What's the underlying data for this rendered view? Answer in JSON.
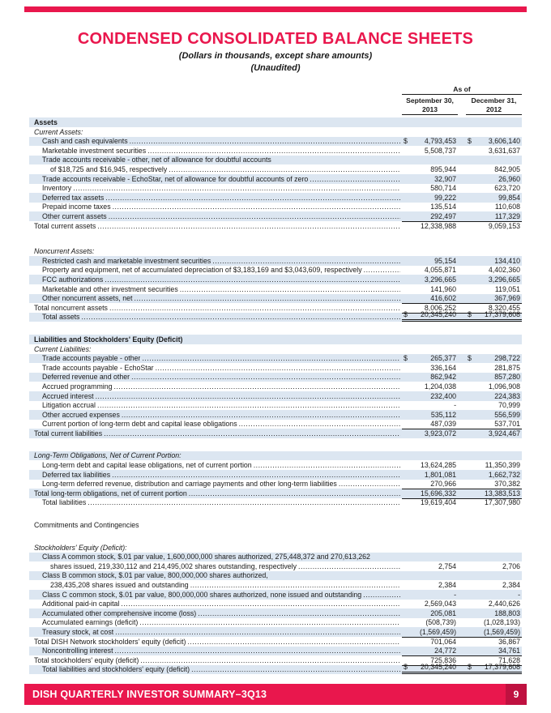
{
  "colors": {
    "accent_red": "#e9174d",
    "page_box_red": "#bf1140",
    "stripe_blue": "#dce6f1",
    "text": "#1a1a1a"
  },
  "title": "CONDENSED CONSOLIDATED BALANCE SHEETS",
  "subtitle_line1": "(Dollars in thousands, except share amounts)",
  "subtitle_line2": "(Unaudited)",
  "table": {
    "as_of_label": "As of",
    "columns": [
      {
        "line1": "September 30,",
        "line2": "2013"
      },
      {
        "line1": "December 31,",
        "line2": "2012"
      }
    ],
    "rows": [
      {
        "t": "Assets",
        "s": "section",
        "stripe": true
      },
      {
        "t": "Current Assets:",
        "s": "sub"
      },
      {
        "t": "Cash and cash equivalents",
        "ind": 1,
        "dots": true,
        "d1": "$",
        "v1": "4,793,453",
        "d2": "$",
        "v2": "3,606,140",
        "stripe": true
      },
      {
        "t": "Marketable investment securities",
        "ind": 1,
        "dots": true,
        "v1": "5,508,737",
        "v2": "3,631,637"
      },
      {
        "t": "Trade accounts receivable - other, net of allowance for doubtful accounts",
        "ind": 1,
        "stripe": true
      },
      {
        "t": "of $18,725 and $16,945, respectively",
        "ind": 2,
        "dots": true,
        "v1": "895,944",
        "v2": "842,905"
      },
      {
        "t": "Trade accounts receivable - EchoStar, net of allowance for doubtful accounts of zero",
        "ind": 1,
        "dots": true,
        "v1": "32,907",
        "v2": "26,960",
        "stripe": true
      },
      {
        "t": "Inventory",
        "ind": 1,
        "dots": true,
        "v1": "580,714",
        "v2": "623,720"
      },
      {
        "t": "Deferred tax assets",
        "ind": 1,
        "dots": true,
        "v1": "99,222",
        "v2": "99,854",
        "stripe": true
      },
      {
        "t": "Prepaid income taxes",
        "ind": 1,
        "dots": true,
        "v1": "135,514",
        "v2": "110,608"
      },
      {
        "t": "Other current assets",
        "ind": 1,
        "dots": true,
        "v1": "292,497",
        "v2": "117,329",
        "stripe": true
      },
      {
        "t": "Total current assets",
        "dots": true,
        "v1": "12,338,988",
        "v2": "9,059,153",
        "bt": true
      },
      {
        "type": "spacer",
        "h": 20
      },
      {
        "t": "Noncurrent Assets:",
        "s": "sub"
      },
      {
        "t": "Restricted cash and marketable investment securities",
        "ind": 1,
        "dots": true,
        "v1": "95,154",
        "v2": "134,410",
        "stripe": true
      },
      {
        "t": "Property and equipment, net of accumulated depreciation of $3,183,169 and $3,043,609, respectively",
        "ind": 1,
        "dots": true,
        "v1": "4,055,871",
        "v2": "4,402,360"
      },
      {
        "t": "FCC authorizations",
        "ind": 1,
        "dots": true,
        "v1": "3,296,665",
        "v2": "3,296,665",
        "stripe": true
      },
      {
        "t": "Marketable and other investment securities",
        "ind": 1,
        "dots": true,
        "v1": "141,960",
        "v2": "119,051"
      },
      {
        "t": "Other noncurrent assets, net",
        "ind": 1,
        "dots": true,
        "v1": "416,602",
        "v2": "367,969",
        "stripe": true
      },
      {
        "t": "Total noncurrent assets",
        "dots": true,
        "v1": "8,006,252",
        "v2": "8,320,455",
        "bt": true
      },
      {
        "t": "Total assets",
        "ind": 1,
        "dots": true,
        "d1": "$",
        "v1": "20,345,240",
        "d2": "$",
        "v2": "17,379,608",
        "stripe": true,
        "bt": true,
        "dbl": true
      },
      {
        "type": "spacer",
        "h": 16
      },
      {
        "t": "Liabilities and Stockholders' Equity (Deficit)",
        "s": "section",
        "stripe": true
      },
      {
        "t": "Current Liabilities:",
        "s": "sub"
      },
      {
        "t": "Trade accounts payable - other",
        "ind": 1,
        "dots": true,
        "d1": "$",
        "v1": "265,377",
        "d2": "$",
        "v2": "298,722",
        "stripe": true
      },
      {
        "t": "Trade accounts payable - EchoStar",
        "ind": 1,
        "dots": true,
        "v1": "336,164",
        "v2": "281,875"
      },
      {
        "t": "Deferred revenue and other",
        "ind": 1,
        "dots": true,
        "v1": "862,942",
        "v2": "857,280",
        "stripe": true
      },
      {
        "t": "Accrued programming",
        "ind": 1,
        "dots": true,
        "v1": "1,204,038",
        "v2": "1,096,908"
      },
      {
        "t": "Accrued interest",
        "ind": 1,
        "dots": true,
        "v1": "232,400",
        "v2": "224,383",
        "stripe": true
      },
      {
        "t": "Litigation accrual",
        "ind": 1,
        "dots": true,
        "v1": "-",
        "v2": "70,999"
      },
      {
        "t": "Other accrued expenses",
        "ind": 1,
        "dots": true,
        "v1": "535,112",
        "v2": "556,599",
        "stripe": true
      },
      {
        "t": "Current portion of long-term debt and capital lease obligations",
        "ind": 1,
        "dots": true,
        "v1": "487,039",
        "v2": "537,701"
      },
      {
        "t": "Total current liabilities",
        "dots": true,
        "v1": "3,923,072",
        "v2": "3,924,467",
        "stripe": true,
        "bt": true
      },
      {
        "type": "spacer",
        "h": 16
      },
      {
        "t": "Long-Term Obligations, Net of Current Portion:",
        "s": "sub",
        "stripe": true
      },
      {
        "t": "Long-term debt and capital lease obligations, net of current portion",
        "ind": 1,
        "dots": true,
        "v1": "13,624,285",
        "v2": "11,350,399"
      },
      {
        "t": "Deferred tax liabilities",
        "ind": 1,
        "dots": true,
        "v1": "1,801,081",
        "v2": "1,662,732",
        "stripe": true
      },
      {
        "t": "Long-term deferred revenue, distribution and carriage payments and other long-term liabilities",
        "ind": 1,
        "dots": true,
        "v1": "270,966",
        "v2": "370,382"
      },
      {
        "t": "Total long-term obligations, net of current portion",
        "dots": true,
        "v1": "15,696,332",
        "v2": "13,383,513",
        "stripe": true,
        "bt": true
      },
      {
        "t": "Total liabilities",
        "ind": 1,
        "dots": true,
        "v1": "19,619,404",
        "v2": "17,307,980",
        "bt": true
      },
      {
        "type": "spacer",
        "h": 16
      },
      {
        "t": "Commitments and Contingencies",
        "s": "plain"
      },
      {
        "type": "spacer",
        "h": 16
      },
      {
        "t": "Stockholders' Equity (Deficit):",
        "s": "sub"
      },
      {
        "t": "Class A common stock, $.01 par value, 1,600,000,000 shares authorized, 275,448,372 and 270,613,262",
        "ind": 1,
        "stripe": true
      },
      {
        "t": "shares issued, 219,330,112 and 214,495,002 shares outstanding, respectively",
        "ind": 2,
        "dots": true,
        "v1": "2,754",
        "v2": "2,706"
      },
      {
        "t": "Class B common stock, $.01 par value, 800,000,000 shares authorized,",
        "ind": 1,
        "stripe": true
      },
      {
        "t": "238,435,208 shares issued and outstanding",
        "ind": 2,
        "dots": true,
        "v1": "2,384",
        "v2": "2,384"
      },
      {
        "t": "Class C common stock, $.01 par value, 800,000,000 shares authorized, none issued and outstanding",
        "ind": 1,
        "dots": true,
        "v1": "-",
        "v2": "-",
        "stripe": true
      },
      {
        "t": "Additional paid-in capital",
        "ind": 1,
        "dots": true,
        "v1": "2,569,043",
        "v2": "2,440,626"
      },
      {
        "t": "Accumulated other comprehensive income (loss)",
        "ind": 1,
        "dots": true,
        "v1": "205,081",
        "v2": "188,803",
        "stripe": true
      },
      {
        "t": "Accumulated earnings (deficit)",
        "ind": 1,
        "dots": true,
        "v1": "(508,739)",
        "v2": "(1,028,193)"
      },
      {
        "t": "Treasury stock, at cost",
        "ind": 1,
        "dots": true,
        "v1": "(1,569,459)",
        "v2": "(1,569,459)",
        "stripe": true
      },
      {
        "t": "Total DISH Network stockholders' equity (deficit)",
        "dots": true,
        "v1": "701,064",
        "v2": "36,867",
        "bt": true
      },
      {
        "t": "Noncontrolling interest",
        "ind": 1,
        "dots": true,
        "v1": "24,772",
        "v2": "34,761",
        "stripe": true
      },
      {
        "t": "Total stockholders' equity (deficit)",
        "dots": true,
        "v1": "725,836",
        "v2": "71,628",
        "bt": true
      },
      {
        "t": "Total liabilities and stockholders' equity (deficit)",
        "ind": 1,
        "dots": true,
        "d1": "$",
        "v1": "20,345,240",
        "d2": "$",
        "v2": "17,379,608",
        "stripe": true,
        "bt": true,
        "dbl": true
      }
    ]
  },
  "footer": {
    "text": "DISH QUARTERLY INVESTOR SUMMARY–3Q13",
    "page_number": "9"
  }
}
